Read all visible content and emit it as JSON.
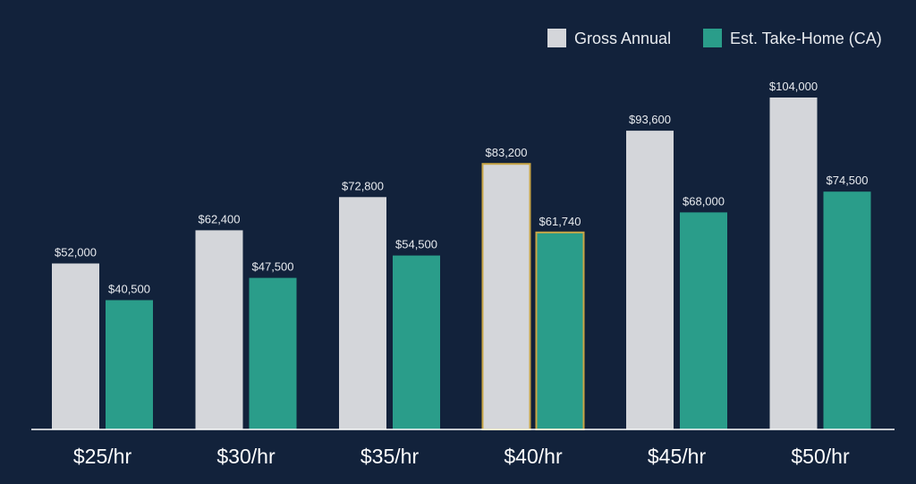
{
  "chart_data": {
    "type": "bar",
    "categories": [
      "$25/hr",
      "$30/hr",
      "$35/hr",
      "$40/hr",
      "$45/hr",
      "$50/hr"
    ],
    "series": [
      {
        "name": "Gross Annual",
        "values": [
          52000,
          62400,
          72800,
          83200,
          93600,
          104000
        ],
        "labels": [
          "$52,000",
          "$62,400",
          "$72,800",
          "$83,200",
          "$93,600",
          "$104,000"
        ],
        "color": "#d4d6da"
      },
      {
        "name": "Est. Take-Home (CA)",
        "values": [
          40500,
          47500,
          54500,
          61740,
          68000,
          74500
        ],
        "labels": [
          "$40,500",
          "$47,500",
          "$54,500",
          "$61,740",
          "$68,000",
          "$74,500"
        ],
        "color": "#2a9d8a"
      }
    ],
    "highlighted_category": "$40/hr",
    "highlight_color": "#c9a646",
    "background_color": "#12223b",
    "ylim": [
      0,
      104000
    ],
    "grid": false,
    "legend_position": "top-right",
    "title": "",
    "xlabel": "",
    "ylabel": ""
  }
}
